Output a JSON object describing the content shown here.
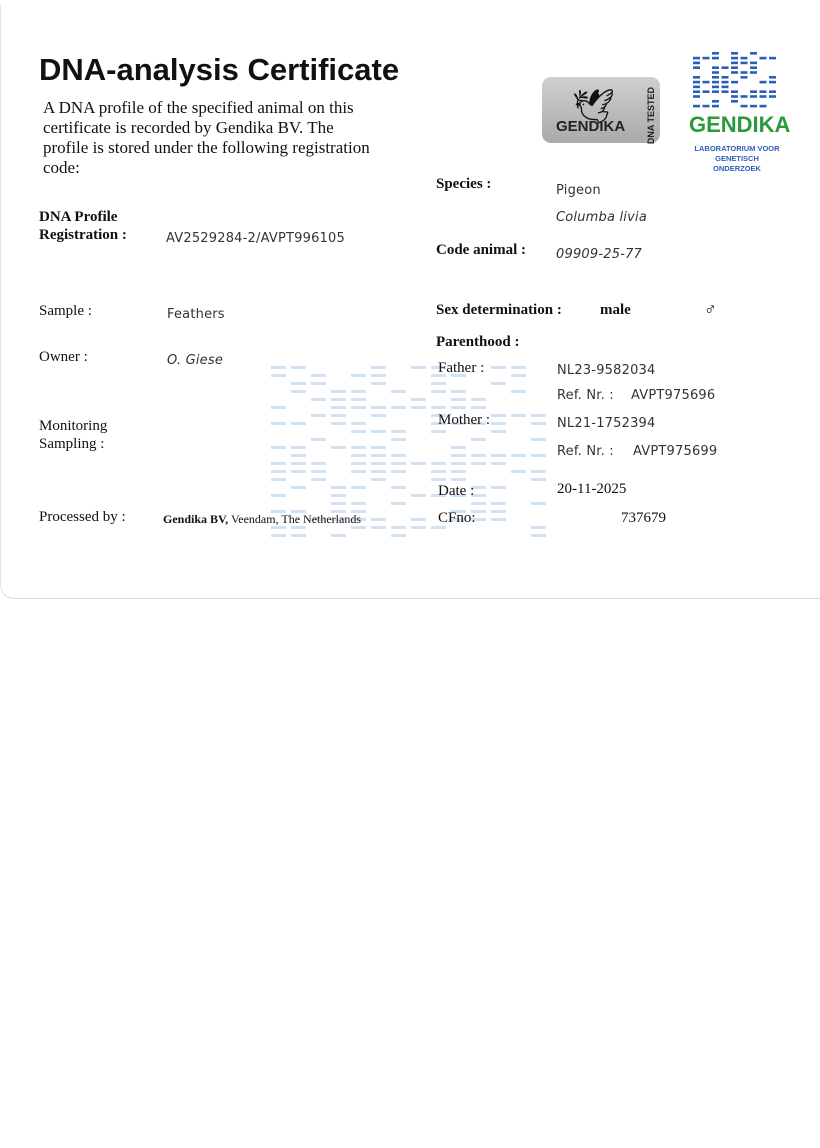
{
  "header": {
    "title": "DNA-analysis Certificate",
    "intro": "A DNA profile of the specified animal on this certificate is recorded by Gendika BV. The profile is stored under the following registration code:"
  },
  "logos": {
    "seal_brand": "GENDIKA",
    "seal_text": "DNA TESTED",
    "seal_icon": "bird-silhouette-icon",
    "company_name": "GENDIKA",
    "company_tagline": "LABORATORIUM VOOR GENETISCH ONDERZOEK",
    "company_color": "#2a9a3a",
    "logo_blue": "#2a5fb8"
  },
  "left": {
    "registration_label_1": "DNA Profile",
    "registration_label_2": "Registration :",
    "registration_value": "AV2529284-2/AVPT996105",
    "sample_label": "Sample :",
    "sample_value": "Feathers",
    "owner_label": "Owner :",
    "owner_value": "O. Giese",
    "monitoring_label_1": "Monitoring",
    "monitoring_label_2": "Sampling :",
    "processed_label": "Processed by :",
    "processed_company": "Gendika BV,",
    "processed_place": "Veendam, The Netherlands"
  },
  "right": {
    "species_label": "Species :",
    "species_value": "Pigeon",
    "species_latin": "Columba livia",
    "code_label": "Code animal :",
    "code_value": "09909-25-77",
    "sex_label": "Sex determination :",
    "sex_value": "male",
    "sex_symbol": "♂",
    "parenthood_label": "Parenthood :",
    "father_label": "Father :",
    "father_value": "NL23-9582034",
    "father_ref_label": "Ref. Nr. :",
    "father_ref_value": "AVPT975696",
    "mother_label": "Mother :",
    "mother_value": "NL21-1752394",
    "mother_ref_label": "Ref. Nr. :",
    "mother_ref_value": "AVPT975699",
    "date_label": "Date :",
    "date_value": "20-11-2025",
    "cfno_label": "CFno:",
    "cfno_value": "737679"
  }
}
